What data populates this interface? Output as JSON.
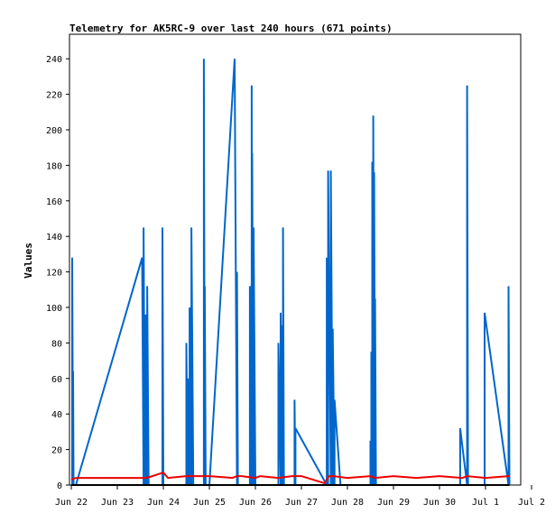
{
  "chart_data": {
    "type": "line",
    "title": "Telemetry for AK5RC-9 over last 240 hours (671 points)",
    "xlabel": "",
    "ylabel": "Values",
    "ylim": [
      0,
      254
    ],
    "xlim": [
      0,
      10.5
    ],
    "grid": false,
    "legend": "none",
    "x_ticks": [
      {
        "label": "Jun 22",
        "x": 0
      },
      {
        "label": "Jun 23",
        "x": 1
      },
      {
        "label": "Jun 24",
        "x": 2
      },
      {
        "label": "Jun 25",
        "x": 3
      },
      {
        "label": "Jun 26",
        "x": 4
      },
      {
        "label": "Jun 27",
        "x": 5
      },
      {
        "label": "Jun 28",
        "x": 6
      },
      {
        "label": "Jun 29",
        "x": 7
      },
      {
        "label": "Jun 30",
        "x": 8
      },
      {
        "label": "Jul 1",
        "x": 9
      },
      {
        "label": "Jul 2",
        "x": 10
      }
    ],
    "y_ticks": [
      0,
      20,
      40,
      60,
      80,
      100,
      120,
      140,
      160,
      180,
      200,
      220,
      240
    ],
    "series": [
      {
        "color": "#0066cc",
        "x": [
          0.02,
          0.02,
          0.04,
          0.04,
          0.05,
          0.05,
          0.08,
          0.08,
          0.1,
          1.54,
          1.57,
          1.57,
          1.6,
          1.6,
          1.62,
          1.62,
          1.65,
          1.65,
          1.68,
          1.68,
          1.7,
          1.7,
          1.73,
          1.73,
          1.75,
          1.75,
          1.98,
          1.98,
          2.0,
          2.0,
          2.5,
          2.5,
          2.53,
          2.53,
          2.57,
          2.57,
          2.61,
          2.61,
          2.65,
          2.65,
          2.68,
          2.68,
          2.88,
          2.88,
          2.9,
          2.9,
          2.92,
          2.92,
          2.95,
          2.95,
          3.0,
          3.55,
          3.6,
          3.6,
          3.62,
          3.62,
          3.88,
          3.88,
          3.92,
          3.92,
          3.93,
          3.93,
          3.96,
          3.96,
          4.0,
          4.0,
          4.02,
          4.02,
          4.5,
          4.5,
          4.55,
          4.55,
          4.58,
          4.58,
          4.6,
          4.6,
          4.62,
          4.62,
          4.65,
          4.65,
          4.85,
          4.85,
          4.87,
          4.87,
          5.55,
          5.55,
          5.58,
          5.58,
          5.64,
          5.64,
          5.68,
          5.68,
          5.72,
          5.72,
          5.85,
          5.85,
          6.5,
          6.5,
          6.52,
          6.52,
          6.54,
          6.54,
          6.56,
          6.56,
          6.58,
          6.58,
          6.6,
          6.6,
          6.62,
          6.62,
          8.45,
          8.45,
          8.6,
          8.6,
          8.62,
          8.62,
          8.98,
          8.98,
          9.5,
          9.5,
          9.52
        ],
        "y": [
          0,
          128,
          0,
          64,
          0,
          0,
          0,
          0,
          0,
          128,
          0,
          145,
          0,
          80,
          0,
          96,
          0,
          112,
          0,
          0,
          0,
          0,
          0,
          0,
          0,
          0,
          0,
          145,
          0,
          0,
          0,
          80,
          0,
          60,
          0,
          100,
          0,
          145,
          0,
          0,
          0,
          0,
          0,
          240,
          0,
          112,
          0,
          0,
          0,
          0,
          0,
          240,
          0,
          120,
          0,
          0,
          0,
          112,
          0,
          225,
          0,
          187,
          0,
          145,
          0,
          0,
          0,
          0,
          0,
          80,
          0,
          97,
          0,
          90,
          0,
          145,
          0,
          0,
          0,
          0,
          0,
          48,
          0,
          32,
          0,
          128,
          0,
          177,
          0,
          177,
          0,
          88,
          0,
          48,
          0,
          0,
          0,
          25,
          0,
          75,
          0,
          182,
          0,
          208,
          0,
          176,
          0,
          105,
          0,
          0,
          0,
          32,
          0,
          225,
          0,
          0,
          0,
          97,
          0,
          112,
          0
        ]
      },
      {
        "color": "#ee0000",
        "x": [
          0.0,
          0.1,
          1.6,
          1.7,
          2.0,
          2.1,
          2.5,
          3.0,
          3.5,
          3.6,
          3.7,
          4.0,
          4.1,
          4.5,
          4.8,
          5.0,
          5.5,
          5.6,
          5.7,
          6.0,
          6.5,
          6.6,
          7.0,
          7.5,
          8.0,
          8.5,
          8.6,
          9.0,
          9.5,
          9.52
        ],
        "y": [
          3,
          4,
          4,
          4.5,
          7,
          4,
          5,
          5,
          4,
          5,
          5,
          4,
          5,
          4,
          5,
          5,
          1,
          5,
          5,
          4,
          5,
          4,
          5,
          4,
          5,
          4,
          5,
          4,
          5,
          5
        ]
      },
      {
        "color": "#000000",
        "x": [
          0.0,
          9.52
        ],
        "y": [
          0,
          0
        ]
      }
    ]
  }
}
